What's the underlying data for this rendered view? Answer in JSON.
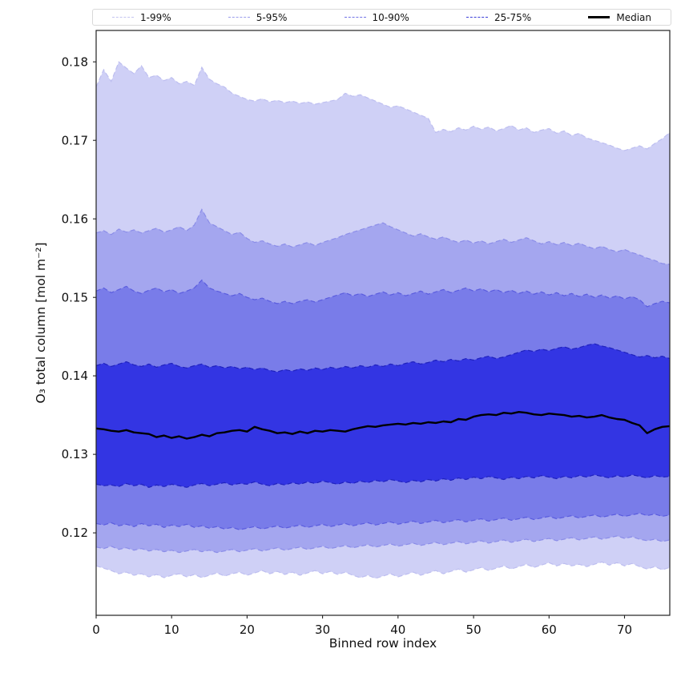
{
  "legend": {
    "entries": [
      {
        "label": "1-99%",
        "color": "#c3c4f0",
        "median": false
      },
      {
        "label": "5-95%",
        "color": "#9b9dec",
        "median": false
      },
      {
        "label": "10-90%",
        "color": "#7173e6",
        "median": false
      },
      {
        "label": "25-75%",
        "color": "#3c3fd9",
        "median": false
      },
      {
        "label": "Median",
        "color": "#000000",
        "median": true
      }
    ]
  },
  "axes": {
    "xlabel": "Binned row index",
    "ylabel": "O₃ total column [mol m⁻²]",
    "xticks": [
      0,
      10,
      20,
      30,
      40,
      50,
      60,
      70
    ],
    "yticks": [
      0.12,
      0.13,
      0.14,
      0.15,
      0.16,
      0.17,
      0.18
    ],
    "xlim": [
      0,
      76
    ],
    "ylim": [
      0.1095,
      0.184
    ]
  },
  "chart_data": {
    "type": "area",
    "title": "",
    "xlabel": "Binned row index",
    "ylabel": "O₃ total column [mol m⁻²]",
    "xlim": [
      0,
      76
    ],
    "ylim": [
      0.1095,
      0.184
    ],
    "legend_position": "top",
    "x": [
      0,
      1,
      2,
      3,
      4,
      5,
      6,
      7,
      8,
      9,
      10,
      11,
      12,
      13,
      14,
      15,
      16,
      17,
      18,
      19,
      20,
      21,
      22,
      23,
      24,
      25,
      26,
      27,
      28,
      29,
      30,
      31,
      32,
      33,
      34,
      35,
      36,
      37,
      38,
      39,
      40,
      41,
      42,
      43,
      44,
      45,
      46,
      47,
      48,
      49,
      50,
      51,
      52,
      53,
      54,
      55,
      56,
      57,
      58,
      59,
      60,
      61,
      62,
      63,
      64,
      65,
      66,
      67,
      68,
      69,
      70,
      71,
      72,
      73,
      74,
      75,
      76
    ],
    "series": [
      {
        "name": "p01",
        "values": [
          0.1158,
          0.1155,
          0.1152,
          0.1148,
          0.115,
          0.1146,
          0.1148,
          0.1144,
          0.1147,
          0.1143,
          0.1146,
          0.1148,
          0.1144,
          0.1147,
          0.1143,
          0.1146,
          0.1149,
          0.1145,
          0.1148,
          0.115,
          0.1146,
          0.1149,
          0.1152,
          0.1148,
          0.1151,
          0.1147,
          0.115,
          0.1146,
          0.1149,
          0.1152,
          0.1148,
          0.1151,
          0.1147,
          0.115,
          0.1146,
          0.1143,
          0.1146,
          0.1142,
          0.1145,
          0.1148,
          0.1144,
          0.1147,
          0.115,
          0.1146,
          0.1149,
          0.1152,
          0.1148,
          0.1151,
          0.1154,
          0.115,
          0.1153,
          0.1156,
          0.1152,
          0.1155,
          0.1158,
          0.1154,
          0.1157,
          0.116,
          0.1156,
          0.1159,
          0.1162,
          0.1158,
          0.1161,
          0.1158,
          0.116,
          0.1157,
          0.116,
          0.1163,
          0.1159,
          0.1162,
          0.1158,
          0.1161,
          0.1157,
          0.1154,
          0.1157,
          0.1153,
          0.1156
        ]
      },
      {
        "name": "p05",
        "values": [
          0.1182,
          0.118,
          0.1183,
          0.1179,
          0.1181,
          0.1178,
          0.118,
          0.1177,
          0.1179,
          0.1176,
          0.1178,
          0.1175,
          0.1177,
          0.1179,
          0.1176,
          0.1178,
          0.1175,
          0.1177,
          0.1179,
          0.1176,
          0.1178,
          0.118,
          0.1177,
          0.1179,
          0.1181,
          0.1178,
          0.118,
          0.1182,
          0.1179,
          0.1181,
          0.1183,
          0.118,
          0.1182,
          0.1184,
          0.1181,
          0.1183,
          0.1185,
          0.1182,
          0.1184,
          0.1186,
          0.1183,
          0.1185,
          0.1187,
          0.1184,
          0.1186,
          0.1188,
          0.1185,
          0.1187,
          0.1189,
          0.1186,
          0.1188,
          0.119,
          0.1187,
          0.1189,
          0.1191,
          0.1188,
          0.119,
          0.1192,
          0.1189,
          0.1191,
          0.1193,
          0.119,
          0.1192,
          0.1194,
          0.1191,
          0.1193,
          0.1195,
          0.1192,
          0.1194,
          0.1196,
          0.1193,
          0.1195,
          0.1192,
          0.119,
          0.1192,
          0.1189,
          0.1191
        ]
      },
      {
        "name": "p10",
        "values": [
          0.1212,
          0.121,
          0.1213,
          0.1209,
          0.1211,
          0.1208,
          0.1212,
          0.1209,
          0.1211,
          0.1207,
          0.121,
          0.1208,
          0.1211,
          0.1207,
          0.1209,
          0.1206,
          0.1208,
          0.1205,
          0.1207,
          0.1204,
          0.1206,
          0.1208,
          0.1205,
          0.1207,
          0.1209,
          0.1206,
          0.1208,
          0.121,
          0.1207,
          0.1209,
          0.1211,
          0.1208,
          0.121,
          0.1212,
          0.1209,
          0.1211,
          0.1213,
          0.121,
          0.1212,
          0.1214,
          0.1211,
          0.1213,
          0.1215,
          0.1212,
          0.1214,
          0.1216,
          0.1213,
          0.1215,
          0.1217,
          0.1214,
          0.1216,
          0.1218,
          0.1215,
          0.1217,
          0.1219,
          0.1216,
          0.1218,
          0.122,
          0.1217,
          0.1219,
          0.1221,
          0.1218,
          0.122,
          0.1222,
          0.1219,
          0.1221,
          0.1223,
          0.122,
          0.1222,
          0.1224,
          0.1221,
          0.1223,
          0.1225,
          0.1222,
          0.1224,
          0.1221,
          0.1223
        ]
      },
      {
        "name": "p25",
        "values": [
          0.1262,
          0.126,
          0.1261,
          0.1259,
          0.1263,
          0.126,
          0.1262,
          0.1258,
          0.1261,
          0.1259,
          0.1262,
          0.126,
          0.1258,
          0.1261,
          0.1263,
          0.126,
          0.1262,
          0.1264,
          0.1261,
          0.1263,
          0.1262,
          0.1265,
          0.1262,
          0.126,
          0.1263,
          0.1261,
          0.1264,
          0.1262,
          0.1265,
          0.1263,
          0.1266,
          0.1264,
          0.1262,
          0.1265,
          0.1263,
          0.1266,
          0.1264,
          0.1267,
          0.1265,
          0.1268,
          0.1266,
          0.1264,
          0.1267,
          0.1265,
          0.1268,
          0.1266,
          0.1269,
          0.1267,
          0.127,
          0.1268,
          0.1271,
          0.1269,
          0.1272,
          0.127,
          0.1268,
          0.1271,
          0.1269,
          0.1272,
          0.127,
          0.1273,
          0.1271,
          0.1269,
          0.1272,
          0.127,
          0.1273,
          0.1271,
          0.1274,
          0.1272,
          0.127,
          0.1273,
          0.1271,
          0.1274,
          0.1272,
          0.127,
          0.1273,
          0.1271,
          0.1272
        ]
      },
      {
        "name": "median",
        "values": [
          0.1333,
          0.1332,
          0.133,
          0.1329,
          0.1331,
          0.1328,
          0.1327,
          0.1326,
          0.1322,
          0.1324,
          0.1321,
          0.1323,
          0.132,
          0.1322,
          0.1325,
          0.1323,
          0.1327,
          0.1328,
          0.133,
          0.1331,
          0.1329,
          0.1335,
          0.1332,
          0.133,
          0.1327,
          0.1328,
          0.1326,
          0.1329,
          0.1327,
          0.133,
          0.1329,
          0.1331,
          0.133,
          0.1329,
          0.1332,
          0.1334,
          0.1336,
          0.1335,
          0.1337,
          0.1338,
          0.1339,
          0.1338,
          0.134,
          0.1339,
          0.1341,
          0.134,
          0.1342,
          0.1341,
          0.1345,
          0.1344,
          0.1348,
          0.135,
          0.1351,
          0.135,
          0.1353,
          0.1352,
          0.1354,
          0.1353,
          0.1351,
          0.135,
          0.1352,
          0.1351,
          0.135,
          0.1348,
          0.1349,
          0.1347,
          0.1348,
          0.135,
          0.1347,
          0.1345,
          0.1344,
          0.134,
          0.1337,
          0.1327,
          0.1332,
          0.1335,
          0.1336
        ]
      },
      {
        "name": "p75",
        "values": [
          0.1413,
          0.1416,
          0.1412,
          0.1415,
          0.1418,
          0.1414,
          0.1412,
          0.1415,
          0.1411,
          0.1414,
          0.1416,
          0.1412,
          0.141,
          0.1413,
          0.1415,
          0.1411,
          0.1413,
          0.141,
          0.1412,
          0.1409,
          0.1411,
          0.1408,
          0.141,
          0.1407,
          0.1405,
          0.1408,
          0.1406,
          0.1409,
          0.1407,
          0.141,
          0.1408,
          0.1411,
          0.1409,
          0.1412,
          0.141,
          0.1413,
          0.1411,
          0.1414,
          0.1412,
          0.1415,
          0.1413,
          0.1416,
          0.1418,
          0.1415,
          0.1417,
          0.142,
          0.1418,
          0.1421,
          0.1419,
          0.1422,
          0.142,
          0.1423,
          0.1425,
          0.1422,
          0.1424,
          0.1427,
          0.143,
          0.1433,
          0.1431,
          0.1434,
          0.1432,
          0.1435,
          0.1437,
          0.1434,
          0.1436,
          0.1439,
          0.1441,
          0.1438,
          0.1436,
          0.1433,
          0.143,
          0.1427,
          0.1424,
          0.1426,
          0.1423,
          0.1425,
          0.1422
        ]
      },
      {
        "name": "p90",
        "values": [
          0.1508,
          0.1512,
          0.1506,
          0.151,
          0.1514,
          0.1508,
          0.1505,
          0.1509,
          0.1512,
          0.1507,
          0.151,
          0.1505,
          0.1508,
          0.1512,
          0.1522,
          0.1512,
          0.1508,
          0.1505,
          0.1502,
          0.1505,
          0.15,
          0.1497,
          0.1499,
          0.1495,
          0.1492,
          0.1495,
          0.1492,
          0.1495,
          0.1497,
          0.1494,
          0.1497,
          0.15,
          0.1503,
          0.1506,
          0.1502,
          0.1505,
          0.1501,
          0.1504,
          0.1507,
          0.1503,
          0.1506,
          0.1502,
          0.1505,
          0.1508,
          0.1504,
          0.1507,
          0.151,
          0.1506,
          0.1509,
          0.1512,
          0.1508,
          0.1511,
          0.1507,
          0.151,
          0.1506,
          0.1509,
          0.1505,
          0.1508,
          0.1504,
          0.1507,
          0.1503,
          0.1506,
          0.1502,
          0.1505,
          0.1501,
          0.1504,
          0.15,
          0.1503,
          0.1499,
          0.1502,
          0.1498,
          0.1501,
          0.1497,
          0.1488,
          0.1492,
          0.1495,
          0.1493
        ]
      },
      {
        "name": "p95",
        "values": [
          0.1582,
          0.1585,
          0.158,
          0.1587,
          0.1583,
          0.1586,
          0.1582,
          0.1585,
          0.1588,
          0.1583,
          0.1586,
          0.159,
          0.1585,
          0.1592,
          0.1612,
          0.1595,
          0.159,
          0.1585,
          0.158,
          0.1583,
          0.1575,
          0.157,
          0.1572,
          0.1568,
          0.1565,
          0.1568,
          0.1564,
          0.1567,
          0.157,
          0.1566,
          0.157,
          0.1573,
          0.1576,
          0.158,
          0.1583,
          0.1586,
          0.1589,
          0.1592,
          0.1595,
          0.159,
          0.1586,
          0.1582,
          0.1578,
          0.1581,
          0.1577,
          0.1574,
          0.1577,
          0.1573,
          0.157,
          0.1573,
          0.1569,
          0.1572,
          0.1568,
          0.1571,
          0.1574,
          0.157,
          0.1573,
          0.1576,
          0.1572,
          0.1568,
          0.1571,
          0.1567,
          0.157,
          0.1566,
          0.1569,
          0.1565,
          0.1562,
          0.1565,
          0.1561,
          0.1558,
          0.1561,
          0.1557,
          0.1554,
          0.155,
          0.1547,
          0.1543,
          0.1542
        ]
      },
      {
        "name": "p99",
        "values": [
          0.1768,
          0.179,
          0.1775,
          0.18,
          0.1792,
          0.1785,
          0.1795,
          0.178,
          0.1783,
          0.1776,
          0.178,
          0.1772,
          0.1775,
          0.177,
          0.1793,
          0.1778,
          0.1772,
          0.1768,
          0.176,
          0.1756,
          0.1752,
          0.175,
          0.1753,
          0.1749,
          0.1751,
          0.1748,
          0.175,
          0.1747,
          0.1749,
          0.1746,
          0.1748,
          0.175,
          0.1752,
          0.176,
          0.1756,
          0.1758,
          0.1754,
          0.175,
          0.1746,
          0.1742,
          0.1744,
          0.174,
          0.1736,
          0.1732,
          0.1728,
          0.171,
          0.1714,
          0.1711,
          0.1716,
          0.1713,
          0.1718,
          0.1714,
          0.1717,
          0.1712,
          0.1715,
          0.1719,
          0.1713,
          0.1716,
          0.171,
          0.1713,
          0.1715,
          0.1709,
          0.1712,
          0.1706,
          0.1709,
          0.1703,
          0.17,
          0.1697,
          0.1694,
          0.169,
          0.1687,
          0.169,
          0.1693,
          0.1689,
          0.1696,
          0.1702,
          0.171
        ]
      }
    ],
    "bands": [
      {
        "name": "1-99%",
        "lower": "p01",
        "upper": "p99",
        "fill": "#cfd0f6",
        "edge": "#bdbef0"
      },
      {
        "name": "5-95%",
        "lower": "p05",
        "upper": "p95",
        "fill": "#a4a6ef",
        "edge": "#8b8de8"
      },
      {
        "name": "10-90%",
        "lower": "p10",
        "upper": "p90",
        "fill": "#797ce9",
        "edge": "#5a5cde"
      },
      {
        "name": "25-75%",
        "lower": "p25",
        "upper": "p75",
        "fill": "#3335e3",
        "edge": "#1f21bd"
      }
    ],
    "median": {
      "series": "median",
      "color": "#000000",
      "linewidth": 2.4
    }
  }
}
